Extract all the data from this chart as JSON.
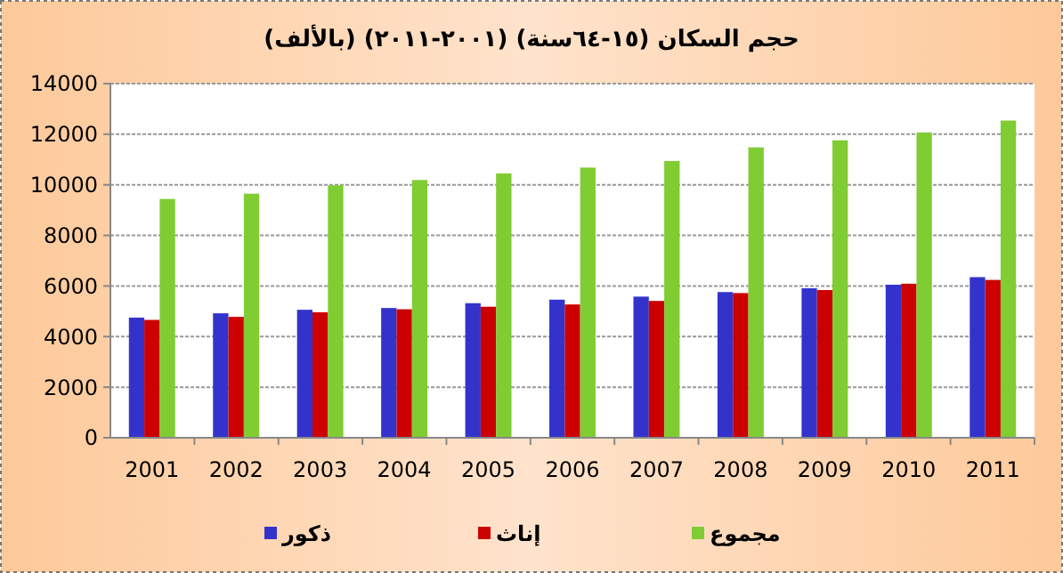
{
  "chart_data": {
    "type": "bar",
    "title": "حجم السكان (١٥-٦٤سنة)  (٢٠٠١-٢٠١١) (بالألف)",
    "categories": [
      "2001",
      "2002",
      "2003",
      "2004",
      "2005",
      "2006",
      "2007",
      "2008",
      "2009",
      "2010",
      "2011"
    ],
    "series": [
      {
        "name": "ذكور",
        "color": "#3333cc",
        "values": [
          4750,
          4920,
          5060,
          5130,
          5320,
          5460,
          5580,
          5760,
          5910,
          6050,
          6350
        ]
      },
      {
        "name": "إناث",
        "color": "#cc0000",
        "values": [
          4660,
          4780,
          4960,
          5080,
          5180,
          5270,
          5410,
          5720,
          5840,
          6090,
          6240
        ]
      },
      {
        "name": "مجموع",
        "color": "#80cc33",
        "values": [
          9440,
          9650,
          9980,
          10190,
          10450,
          10680,
          10940,
          11480,
          11760,
          12070,
          12540
        ]
      }
    ],
    "ylim": [
      0,
      14000
    ],
    "yticks": [
      0,
      2000,
      4000,
      6000,
      8000,
      10000,
      12000,
      14000
    ],
    "grid": "y",
    "legend": "bottom"
  }
}
